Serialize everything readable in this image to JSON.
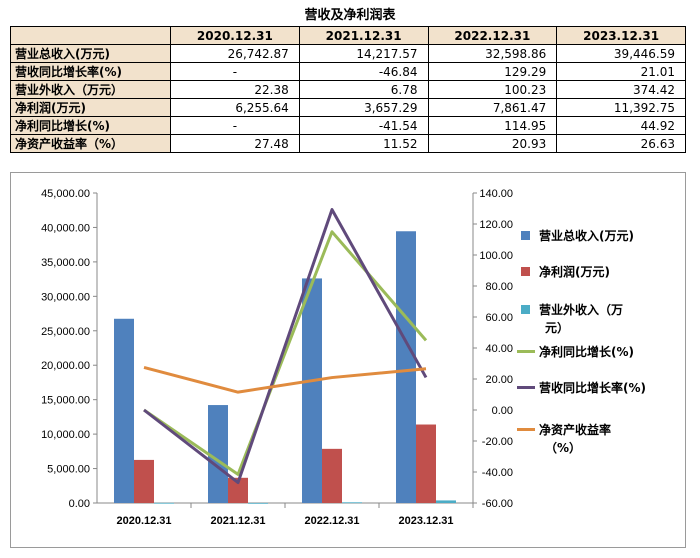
{
  "table": {
    "title": "营收及净利润表",
    "columns": [
      "2020.12.31",
      "2021.12.31",
      "2022.12.31",
      "2023.12.31"
    ],
    "rows": [
      {
        "label": "营业总收入(万元)",
        "values": [
          "26,742.87",
          "14,217.57",
          "32,598.86",
          "39,446.59"
        ]
      },
      {
        "label": "营收同比增长率(%)",
        "values": [
          "-",
          "-46.84",
          "129.29",
          "21.01"
        ]
      },
      {
        "label": "营业外收入（万元）",
        "values": [
          "22.38",
          "6.78",
          "100.23",
          "374.42"
        ]
      },
      {
        "label": "净利润(万元)",
        "values": [
          "6,255.64",
          "3,657.29",
          "7,861.47",
          "11,392.75"
        ]
      },
      {
        "label": "净利同比增长(%)",
        "values": [
          "-",
          "-41.54",
          "114.95",
          "44.92"
        ]
      },
      {
        "label": "净资产收益率（%）",
        "values": [
          "27.48",
          "11.52",
          "20.93",
          "26.63"
        ]
      }
    ]
  },
  "chart_data": {
    "type": "bar",
    "title": "",
    "categories": [
      "2020.12.31",
      "2021.12.31",
      "2022.12.31",
      "2023.12.31"
    ],
    "left_axis": {
      "min": 0,
      "max": 45000,
      "step": 5000,
      "tick_labels": [
        "0.00",
        "5,000.00",
        "10,000.00",
        "15,000.00",
        "20,000.00",
        "25,000.00",
        "30,000.00",
        "35,000.00",
        "40,000.00",
        "45,000.00"
      ]
    },
    "right_axis": {
      "min": -60,
      "max": 140,
      "step": 20,
      "tick_labels": [
        "-60.00",
        "-40.00",
        "-20.00",
        "0.00",
        "20.00",
        "40.00",
        "60.00",
        "80.00",
        "100.00",
        "120.00",
        "140.00"
      ]
    },
    "series": [
      {
        "name": "营业总收入(万元)",
        "type": "bar",
        "axis": "left",
        "color": "#4f81bd",
        "values": [
          26742.87,
          14217.57,
          32598.86,
          39446.59
        ]
      },
      {
        "name": "净利润(万元)",
        "type": "bar",
        "axis": "left",
        "color": "#c0504d",
        "values": [
          6255.64,
          3657.29,
          7861.47,
          11392.75
        ]
      },
      {
        "name": "营业外收入（万元）",
        "type": "bar",
        "axis": "left",
        "color": "#4bacc6",
        "values": [
          22.38,
          6.78,
          100.23,
          374.42
        ]
      },
      {
        "name": "净利同比增长(%)",
        "type": "line",
        "axis": "right",
        "color": "#9bbb59",
        "values": [
          0,
          -41.54,
          114.95,
          44.92
        ]
      },
      {
        "name": "营收同比增长率(%)",
        "type": "line",
        "axis": "right",
        "color": "#604a7b",
        "values": [
          0,
          -46.84,
          129.29,
          21.01
        ]
      },
      {
        "name": "净资产收益率（%）",
        "type": "line",
        "axis": "right",
        "color": "#e08b3e",
        "values": [
          27.48,
          11.52,
          20.93,
          26.63
        ]
      }
    ],
    "legend": [
      {
        "label": "营业总收入(万元)",
        "label2": ""
      },
      {
        "label": "净利润(万元)",
        "label2": ""
      },
      {
        "label": "营业外收入（万",
        "label2": "元）"
      },
      {
        "label": "净利同比增长(%)",
        "label2": ""
      },
      {
        "label": "营收同比增长率(%)",
        "label2": ""
      },
      {
        "label": "净资产收益率",
        "label2": "（%）"
      }
    ],
    "legend_position": "right"
  }
}
